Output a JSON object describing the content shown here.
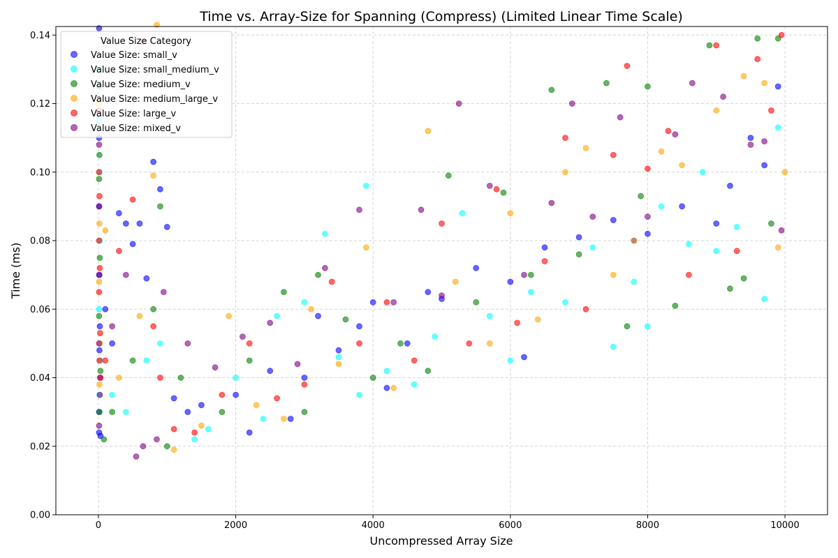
{
  "chart_data": {
    "type": "scatter",
    "title": "Time vs. Array-Size for Spanning (Compress) (Limited Linear Time Scale)",
    "xlabel": "Uncompressed Array Size",
    "ylabel": "Time (ms)",
    "xlim": [
      -620,
      10620
    ],
    "ylim": [
      0,
      0.1425
    ],
    "xticks": [
      0,
      2000,
      4000,
      6000,
      8000,
      10000
    ],
    "xtick_labels": [
      "0",
      "2000",
      "4000",
      "6000",
      "8000",
      "10000"
    ],
    "yticks": [
      0.0,
      0.02,
      0.04,
      0.06,
      0.08,
      0.1,
      0.12,
      0.14
    ],
    "ytick_labels": [
      "0.00",
      "0.02",
      "0.04",
      "0.06",
      "0.08",
      "0.10",
      "0.12",
      "0.14"
    ],
    "grid": true,
    "legend": {
      "title": "Value Size Category",
      "position": "top-left"
    },
    "series": [
      {
        "name": "Value Size: small_v",
        "color": "#0000ff",
        "points": [
          [
            10,
            0.142
          ],
          [
            10,
            0.11
          ],
          [
            10,
            0.09
          ],
          [
            10,
            0.07
          ],
          [
            20,
            0.055
          ],
          [
            15,
            0.048
          ],
          [
            25,
            0.04
          ],
          [
            10,
            0.03
          ],
          [
            10,
            0.024
          ],
          [
            30,
            0.023
          ],
          [
            100,
            0.06
          ],
          [
            200,
            0.05
          ],
          [
            300,
            0.088
          ],
          [
            400,
            0.085
          ],
          [
            500,
            0.079
          ],
          [
            600,
            0.085
          ],
          [
            700,
            0.069
          ],
          [
            800,
            0.103
          ],
          [
            900,
            0.095
          ],
          [
            1000,
            0.084
          ],
          [
            1100,
            0.034
          ],
          [
            1300,
            0.03
          ],
          [
            1500,
            0.032
          ],
          [
            2000,
            0.035
          ],
          [
            2200,
            0.024
          ],
          [
            2500,
            0.042
          ],
          [
            2800,
            0.028
          ],
          [
            3000,
            0.04
          ],
          [
            3200,
            0.058
          ],
          [
            3500,
            0.048
          ],
          [
            3800,
            0.055
          ],
          [
            4000,
            0.062
          ],
          [
            4200,
            0.037
          ],
          [
            4500,
            0.05
          ],
          [
            4800,
            0.065
          ],
          [
            5000,
            0.063
          ],
          [
            5500,
            0.072
          ],
          [
            6000,
            0.068
          ],
          [
            6200,
            0.046
          ],
          [
            6500,
            0.078
          ],
          [
            7000,
            0.081
          ],
          [
            7500,
            0.086
          ],
          [
            7800,
            0.08
          ],
          [
            8000,
            0.082
          ],
          [
            8500,
            0.09
          ],
          [
            9000,
            0.085
          ],
          [
            9200,
            0.096
          ],
          [
            9500,
            0.11
          ],
          [
            9700,
            0.102
          ],
          [
            9900,
            0.125
          ]
        ]
      },
      {
        "name": "Value Size: small_medium_v",
        "color": "#00ffff",
        "points": [
          [
            10,
            0.13
          ],
          [
            10,
            0.115
          ],
          [
            15,
            0.1
          ],
          [
            20,
            0.08
          ],
          [
            10,
            0.06
          ],
          [
            25,
            0.045
          ],
          [
            15,
            0.035
          ],
          [
            200,
            0.035
          ],
          [
            400,
            0.03
          ],
          [
            700,
            0.045
          ],
          [
            900,
            0.05
          ],
          [
            1400,
            0.022
          ],
          [
            1600,
            0.025
          ],
          [
            2000,
            0.04
          ],
          [
            2400,
            0.028
          ],
          [
            2600,
            0.058
          ],
          [
            3000,
            0.062
          ],
          [
            3300,
            0.082
          ],
          [
            3500,
            0.046
          ],
          [
            3800,
            0.035
          ],
          [
            3900,
            0.096
          ],
          [
            4200,
            0.042
          ],
          [
            4600,
            0.038
          ],
          [
            4900,
            0.052
          ],
          [
            5300,
            0.088
          ],
          [
            5700,
            0.058
          ],
          [
            6000,
            0.045
          ],
          [
            6300,
            0.065
          ],
          [
            6800,
            0.062
          ],
          [
            7200,
            0.078
          ],
          [
            7500,
            0.049
          ],
          [
            7800,
            0.068
          ],
          [
            8000,
            0.055
          ],
          [
            8200,
            0.09
          ],
          [
            8600,
            0.079
          ],
          [
            8800,
            0.1
          ],
          [
            9000,
            0.077
          ],
          [
            9300,
            0.084
          ],
          [
            9700,
            0.063
          ],
          [
            9900,
            0.113
          ]
        ]
      },
      {
        "name": "Value Size: medium_v",
        "color": "#008000",
        "points": [
          [
            10,
            0.125
          ],
          [
            15,
            0.105
          ],
          [
            10,
            0.098
          ],
          [
            20,
            0.075
          ],
          [
            10,
            0.058
          ],
          [
            30,
            0.042
          ],
          [
            15,
            0.03
          ],
          [
            80,
            0.022
          ],
          [
            200,
            0.03
          ],
          [
            500,
            0.045
          ],
          [
            800,
            0.06
          ],
          [
            900,
            0.09
          ],
          [
            1000,
            0.02
          ],
          [
            1200,
            0.04
          ],
          [
            1800,
            0.03
          ],
          [
            2200,
            0.045
          ],
          [
            2700,
            0.065
          ],
          [
            3000,
            0.03
          ],
          [
            3200,
            0.07
          ],
          [
            3600,
            0.057
          ],
          [
            4000,
            0.04
          ],
          [
            4400,
            0.05
          ],
          [
            4800,
            0.042
          ],
          [
            5100,
            0.099
          ],
          [
            5500,
            0.062
          ],
          [
            5900,
            0.094
          ],
          [
            6300,
            0.07
          ],
          [
            6600,
            0.124
          ],
          [
            7000,
            0.076
          ],
          [
            7400,
            0.126
          ],
          [
            7700,
            0.055
          ],
          [
            7900,
            0.093
          ],
          [
            8000,
            0.125
          ],
          [
            8400,
            0.061
          ],
          [
            8900,
            0.137
          ],
          [
            9200,
            0.066
          ],
          [
            9400,
            0.069
          ],
          [
            9600,
            0.139
          ],
          [
            9800,
            0.085
          ],
          [
            9900,
            0.139
          ]
        ]
      },
      {
        "name": "Value Size: medium_large_v",
        "color": "#ffa500",
        "points": [
          [
            10,
            0.12
          ],
          [
            15,
            0.085
          ],
          [
            10,
            0.068
          ],
          [
            20,
            0.05
          ],
          [
            15,
            0.038
          ],
          [
            100,
            0.083
          ],
          [
            300,
            0.04
          ],
          [
            600,
            0.058
          ],
          [
            800,
            0.099
          ],
          [
            850,
            0.143
          ],
          [
            1100,
            0.019
          ],
          [
            1500,
            0.026
          ],
          [
            1900,
            0.058
          ],
          [
            2300,
            0.032
          ],
          [
            2700,
            0.028
          ],
          [
            3100,
            0.06
          ],
          [
            3500,
            0.044
          ],
          [
            3900,
            0.078
          ],
          [
            4300,
            0.037
          ],
          [
            4800,
            0.112
          ],
          [
            5200,
            0.068
          ],
          [
            5700,
            0.05
          ],
          [
            6000,
            0.088
          ],
          [
            6400,
            0.057
          ],
          [
            6800,
            0.1
          ],
          [
            7100,
            0.107
          ],
          [
            7500,
            0.07
          ],
          [
            7800,
            0.08
          ],
          [
            8200,
            0.106
          ],
          [
            8500,
            0.102
          ],
          [
            9000,
            0.118
          ],
          [
            9400,
            0.128
          ],
          [
            9700,
            0.126
          ],
          [
            9900,
            0.078
          ],
          [
            10000,
            0.1
          ]
        ]
      },
      {
        "name": "Value Size: large_v",
        "color": "#ff0000",
        "points": [
          [
            10,
            0.118
          ],
          [
            10,
            0.1
          ],
          [
            15,
            0.093
          ],
          [
            10,
            0.08
          ],
          [
            20,
            0.072
          ],
          [
            10,
            0.065
          ],
          [
            25,
            0.053
          ],
          [
            15,
            0.045
          ],
          [
            30,
            0.04
          ],
          [
            100,
            0.045
          ],
          [
            300,
            0.077
          ],
          [
            500,
            0.092
          ],
          [
            650,
            0.138
          ],
          [
            800,
            0.055
          ],
          [
            900,
            0.04
          ],
          [
            1100,
            0.025
          ],
          [
            1400,
            0.024
          ],
          [
            1800,
            0.035
          ],
          [
            2200,
            0.05
          ],
          [
            2600,
            0.034
          ],
          [
            3000,
            0.038
          ],
          [
            3400,
            0.068
          ],
          [
            3800,
            0.05
          ],
          [
            4200,
            0.062
          ],
          [
            4600,
            0.045
          ],
          [
            5000,
            0.085
          ],
          [
            5400,
            0.05
          ],
          [
            5800,
            0.095
          ],
          [
            6100,
            0.056
          ],
          [
            6500,
            0.074
          ],
          [
            6800,
            0.11
          ],
          [
            7100,
            0.06
          ],
          [
            7500,
            0.105
          ],
          [
            7700,
            0.131
          ],
          [
            8000,
            0.101
          ],
          [
            8300,
            0.112
          ],
          [
            8600,
            0.07
          ],
          [
            9000,
            0.137
          ],
          [
            9300,
            0.077
          ],
          [
            9600,
            0.133
          ],
          [
            9800,
            0.118
          ],
          [
            9950,
            0.14
          ]
        ]
      },
      {
        "name": "Value Size: mixed_v",
        "color": "#800080",
        "points": [
          [
            10,
            0.108
          ],
          [
            10,
            0.09
          ],
          [
            15,
            0.07
          ],
          [
            10,
            0.05
          ],
          [
            20,
            0.035
          ],
          [
            10,
            0.026
          ],
          [
            200,
            0.055
          ],
          [
            400,
            0.07
          ],
          [
            550,
            0.017
          ],
          [
            650,
            0.02
          ],
          [
            850,
            0.022
          ],
          [
            950,
            0.065
          ],
          [
            1300,
            0.05
          ],
          [
            1700,
            0.043
          ],
          [
            2100,
            0.052
          ],
          [
            2500,
            0.056
          ],
          [
            2900,
            0.044
          ],
          [
            3300,
            0.072
          ],
          [
            3800,
            0.089
          ],
          [
            4300,
            0.062
          ],
          [
            4700,
            0.089
          ],
          [
            5000,
            0.064
          ],
          [
            5250,
            0.12
          ],
          [
            5700,
            0.096
          ],
          [
            6200,
            0.07
          ],
          [
            6600,
            0.091
          ],
          [
            6900,
            0.12
          ],
          [
            7200,
            0.087
          ],
          [
            7600,
            0.116
          ],
          [
            8000,
            0.087
          ],
          [
            8400,
            0.111
          ],
          [
            8650,
            0.126
          ],
          [
            9100,
            0.122
          ],
          [
            9500,
            0.108
          ],
          [
            9700,
            0.109
          ],
          [
            9950,
            0.083
          ]
        ]
      }
    ]
  }
}
